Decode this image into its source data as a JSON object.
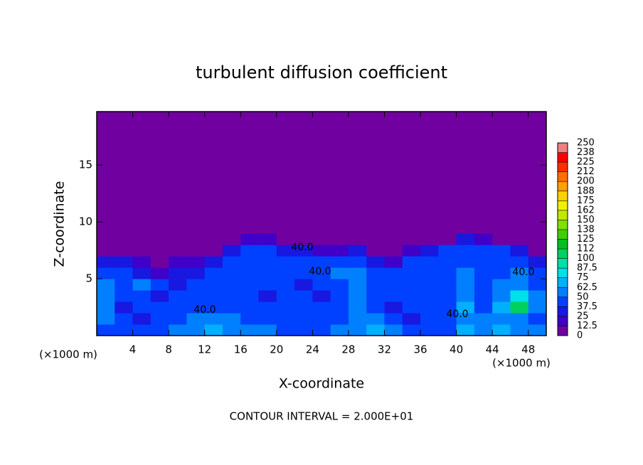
{
  "chart_data": {
    "type": "heatmap",
    "title": "turbulent diffusion coefficient",
    "x_label": "X-coordinate",
    "y_label": "Z-coordinate",
    "x_unit": "(×1000 m)",
    "y_unit": "(×1000 m)",
    "footer": "CONTOUR INTERVAL = 2.000E+01",
    "annotations": [
      "40.0",
      "40.0",
      "40.0",
      "40.0",
      "40.0"
    ],
    "xlim": [
      0,
      50
    ],
    "ylim": [
      0,
      19.7
    ],
    "xticks": [
      4,
      8,
      12,
      16,
      20,
      24,
      28,
      32,
      36,
      40,
      44,
      48
    ],
    "yticks": [
      5,
      10,
      15
    ],
    "x": [
      1,
      3,
      5,
      7,
      9,
      11,
      13,
      15,
      17,
      19,
      21,
      23,
      25,
      27,
      29,
      31,
      33,
      35,
      37,
      39,
      41,
      43,
      45,
      47,
      49
    ],
    "y": [
      0.5,
      1.5,
      2.5,
      3.5,
      4.5,
      5.5,
      6.5,
      7.5,
      8.5,
      9.5
    ],
    "z": [
      [
        45,
        45,
        40,
        40,
        50,
        60,
        65,
        60,
        55,
        50,
        45,
        40,
        45,
        50,
        60,
        65,
        50,
        45,
        45,
        45,
        65,
        60,
        65,
        55,
        50
      ],
      [
        50,
        40,
        35,
        40,
        45,
        55,
        55,
        50,
        45,
        45,
        40,
        45,
        40,
        40,
        55,
        55,
        40,
        35,
        40,
        40,
        60,
        50,
        55,
        55,
        45
      ],
      [
        55,
        35,
        40,
        45,
        45,
        45,
        45,
        40,
        40,
        45,
        40,
        45,
        40,
        40,
        55,
        45,
        35,
        40,
        40,
        40,
        65,
        45,
        70,
        100,
        50
      ],
      [
        60,
        45,
        40,
        35,
        40,
        45,
        40,
        45,
        45,
        35,
        40,
        40,
        35,
        45,
        50,
        40,
        40,
        40,
        40,
        40,
        60,
        45,
        55,
        80,
        50
      ],
      [
        50,
        45,
        50,
        40,
        35,
        40,
        45,
        40,
        40,
        40,
        40,
        35,
        40,
        40,
        50,
        40,
        40,
        40,
        40,
        45,
        55,
        45,
        50,
        55,
        45
      ],
      [
        40,
        45,
        35,
        20,
        25,
        30,
        40,
        40,
        45,
        45,
        45,
        40,
        45,
        50,
        55,
        40,
        40,
        40,
        45,
        40,
        50,
        40,
        45,
        50,
        40
      ],
      [
        35,
        30,
        15,
        10,
        15,
        20,
        30,
        40,
        45,
        40,
        45,
        40,
        40,
        45,
        40,
        30,
        15,
        40,
        45,
        40,
        45,
        40,
        40,
        40,
        30
      ],
      [
        0,
        0,
        0,
        0,
        0,
        0,
        5,
        30,
        40,
        40,
        35,
        30,
        20,
        15,
        25,
        0,
        0,
        20,
        35,
        40,
        40,
        40,
        40,
        35,
        0
      ],
      [
        0,
        0,
        0,
        0,
        0,
        0,
        0,
        0,
        15,
        20,
        0,
        0,
        0,
        0,
        0,
        0,
        0,
        0,
        0,
        10,
        30,
        20,
        10,
        0,
        0
      ],
      [
        0,
        0,
        0,
        0,
        0,
        0,
        0,
        0,
        0,
        0,
        0,
        0,
        0,
        0,
        0,
        0,
        0,
        0,
        0,
        0,
        0,
        0,
        0,
        0,
        0
      ]
    ],
    "levels": [
      0,
      12.5,
      25,
      37.5,
      50,
      62.5,
      75,
      87.5,
      100,
      {
        "value": 112.5,
        "label": "112"
      },
      125,
      {
        "value": 137.5,
        "label": "138"
      },
      150,
      {
        "value": 162.5,
        "label": "162"
      },
      175,
      {
        "value": 187.5,
        "label": "188"
      },
      200,
      {
        "value": 212.5,
        "label": "212"
      },
      225,
      {
        "value": 237.5,
        "label": "238"
      },
      250
    ],
    "colors": [
      "#7000a0",
      "#4000c8",
      "#1818e0",
      "#0040ff",
      "#0080ff",
      "#00b0ff",
      "#00e0e8",
      "#00e0a8",
      "#00d060",
      "#00c020",
      "#40d000",
      "#80e000",
      "#c0e800",
      "#f0f000",
      "#ffd000",
      "#ffa000",
      "#ff7000",
      "#ff3000",
      "#ff0000",
      "#f08080"
    ]
  }
}
